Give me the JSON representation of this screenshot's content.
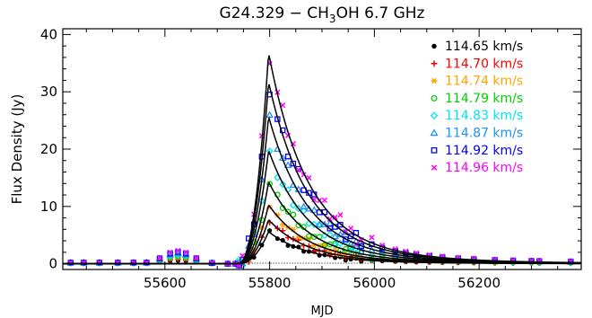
{
  "chart_data": {
    "type": "scatter",
    "title": "G24.329 − CH",
    "title_sub": "3",
    "title_suffix": "OH 6.7 GHz",
    "xlabel": "MJD",
    "ylabel": "Flux Density (Jy)",
    "xlim": [
      55405,
      56395
    ],
    "ylim": [
      -1,
      41
    ],
    "xticks": [
      55600,
      55800,
      56000,
      56200
    ],
    "yticks": [
      0,
      10,
      20,
      30,
      40
    ],
    "grid": false,
    "legend_position": "top-right",
    "model": {
      "t0": 55740,
      "tpeak": 55798,
      "rise_tau": 26,
      "decay_tau": 72,
      "shoulder_fraction": 0.12
    },
    "series": [
      {
        "name": "114.65 km/s",
        "color": "#000000",
        "marker": "circle-filled",
        "peak": 5.6
      },
      {
        "name": "114.70 km/s",
        "color": "#ff0000",
        "marker": "plus",
        "peak": 7.7
      },
      {
        "name": "114.74 km/s",
        "color": "#ffa500",
        "marker": "asterisk",
        "peak": 10.3
      },
      {
        "name": "114.79 km/s",
        "color": "#00d000",
        "marker": "circle-open",
        "peak": 14.3
      },
      {
        "name": "114.83 km/s",
        "color": "#00e5ee",
        "marker": "diamond",
        "peak": 19.8
      },
      {
        "name": "114.87 km/s",
        "color": "#1e90ff",
        "marker": "triangle",
        "peak": 25.7
      },
      {
        "name": "114.92 km/s",
        "color": "#0000ff",
        "marker": "square",
        "peak": 31.7
      },
      {
        "name": "114.96 km/s",
        "color": "#ff00ff",
        "marker": "x",
        "peak": 36.8
      }
    ],
    "observation_mjd": [
      55420,
      55445,
      55475,
      55510,
      55540,
      55565,
      55590,
      55610,
      55625,
      55640,
      55660,
      55690,
      55720,
      55735,
      55742,
      55748,
      55760,
      55770,
      55785,
      55800,
      55815,
      55825,
      55835,
      55845,
      55855,
      55865,
      55875,
      55885,
      55895,
      55905,
      55915,
      55925,
      55935,
      55945,
      55955,
      55965,
      55975,
      55995,
      56015,
      56040,
      56060,
      56080,
      56105,
      56130,
      56160,
      56190,
      56230,
      56265,
      56300,
      56315,
      56375
    ]
  }
}
